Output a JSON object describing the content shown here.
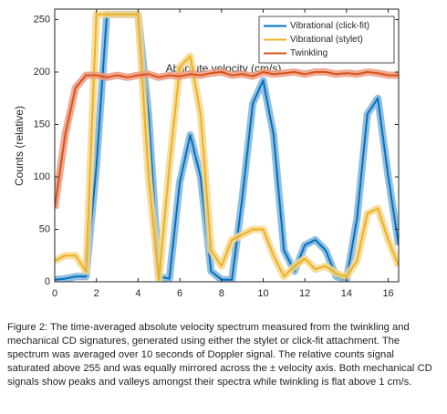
{
  "chart_data": {
    "type": "line",
    "x_label": "Absolute velocity (cm/s)",
    "y_label": "Counts (relative)",
    "x": [
      0,
      0.5,
      1,
      1.5,
      2,
      2.5,
      3,
      3.5,
      4,
      4.5,
      5,
      5.5,
      6,
      6.5,
      7,
      7.5,
      8,
      8.5,
      9,
      9.5,
      10,
      10.5,
      11,
      11.5,
      12,
      12.5,
      13,
      13.5,
      14,
      14.5,
      15,
      15.5,
      16,
      16.5
    ],
    "series": [
      {
        "name": "Vibrational (click-fit)",
        "color": "#0072bd",
        "band_color": "#7fb3dc",
        "values": [
          2,
          3,
          5,
          5,
          110,
          255,
          255,
          255,
          255,
          160,
          5,
          3,
          95,
          140,
          100,
          10,
          2,
          2,
          80,
          170,
          192,
          140,
          30,
          10,
          35,
          40,
          30,
          5,
          2,
          60,
          160,
          175,
          100,
          35
        ]
      },
      {
        "name": "Vibrational (stylet)",
        "color": "#edb120",
        "band_color": "#f6d88f",
        "values": [
          20,
          25,
          25,
          10,
          255,
          255,
          255,
          255,
          255,
          100,
          2,
          110,
          205,
          215,
          160,
          30,
          15,
          40,
          45,
          50,
          50,
          25,
          5,
          15,
          22,
          12,
          15,
          8,
          5,
          20,
          65,
          70,
          40,
          15
        ]
      },
      {
        "name": "Twinkling",
        "color": "#d95319",
        "band_color": "#ec9b80",
        "values": [
          70,
          140,
          185,
          197,
          197,
          195,
          197,
          195,
          197,
          198,
          195,
          197,
          196,
          198,
          197,
          199,
          200,
          197,
          198,
          196,
          200,
          198,
          199,
          200,
          198,
          200,
          200,
          198,
          199,
          198,
          200,
          199,
          197,
          197
        ]
      }
    ],
    "xlim": [
      0,
      16.5
    ],
    "xticks": [
      0,
      2,
      4,
      6,
      8,
      10,
      12,
      14,
      16
    ],
    "ylim": [
      0,
      260
    ],
    "yticks": [
      0,
      50,
      100,
      150,
      200,
      250
    ],
    "legend": "top-right"
  },
  "caption": "Figure 2: The time-averaged absolute velocity spectrum measured from the twinkling and mechanical CD signatures, generated using either the stylet or click-fit attachment. The spectrum was averaged over 10 seconds of Doppler signal. The relative counts signal saturated above 255 and was equally mirrored across the ± velocity axis. Both mechanical CD signals show peaks and valleys amongst their spectra while twinkling is flat above 1 cm/s."
}
